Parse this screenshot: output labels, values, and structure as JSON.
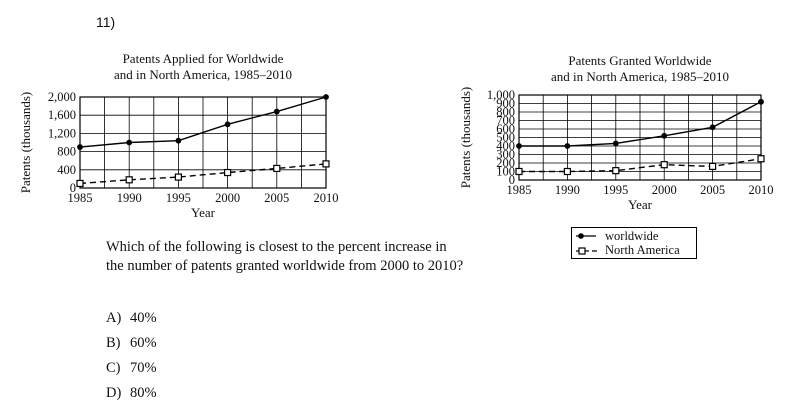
{
  "question_number": "11)",
  "question_text": "Which of the following is closest to the percent increase in the number of patents granted worldwide from 2000 to 2010?",
  "choices": [
    {
      "label": "A)",
      "text": "40%"
    },
    {
      "label": "B)",
      "text": "60%"
    },
    {
      "label": "C)",
      "text": "70%"
    },
    {
      "label": "D)",
      "text": "80%"
    }
  ],
  "legend": {
    "items": [
      {
        "name": "worldwide",
        "marker": "filled-circle",
        "line": "solid"
      },
      {
        "name": "North America",
        "marker": "open-square",
        "line": "dashed"
      }
    ]
  },
  "chart_data": [
    {
      "type": "line",
      "title": "Patents Applied for Worldwide and in North America, 1985–2010",
      "title_lines": [
        "Patents Applied for Worldwide",
        "and in North America, 1985–2010"
      ],
      "xlabel": "Year",
      "ylabel": "Patents (thousands)",
      "x": [
        1985,
        1990,
        1995,
        2000,
        2005,
        2010
      ],
      "xlim": [
        1985,
        2010
      ],
      "ylim": [
        0,
        2000
      ],
      "yticks": [
        0,
        400,
        800,
        1200,
        1600,
        2000
      ],
      "ytick_labels": [
        "0",
        "400",
        "800",
        "1,200",
        "1,600",
        "2,000"
      ],
      "grid": true,
      "series": [
        {
          "name": "worldwide",
          "values": [
            900,
            1000,
            1040,
            1400,
            1680,
            2000
          ],
          "style": "solid",
          "marker": "filled-circle"
        },
        {
          "name": "North America",
          "values": [
            100,
            180,
            240,
            340,
            430,
            530
          ],
          "style": "dashed",
          "marker": "open-square"
        }
      ]
    },
    {
      "type": "line",
      "title": "Patents Granted Worldwide and in North America, 1985–2010",
      "title_lines": [
        "Patents Granted Worldwide",
        "and in North America, 1985–2010"
      ],
      "xlabel": "Year",
      "ylabel": "Patents (thousands)",
      "x": [
        1985,
        1990,
        1995,
        2000,
        2005,
        2010
      ],
      "xlim": [
        1985,
        2010
      ],
      "ylim": [
        0,
        1000
      ],
      "yticks": [
        0,
        100,
        200,
        300,
        400,
        500,
        600,
        700,
        800,
        900,
        1000
      ],
      "ytick_labels": [
        "0",
        "100",
        "200",
        "300",
        "400",
        "500",
        "600",
        "700",
        "800",
        "900",
        "1,000"
      ],
      "grid": true,
      "series": [
        {
          "name": "worldwide",
          "values": [
            400,
            400,
            430,
            520,
            620,
            920
          ],
          "style": "solid",
          "marker": "filled-circle"
        },
        {
          "name": "North America",
          "values": [
            100,
            100,
            110,
            180,
            160,
            250
          ],
          "style": "dashed",
          "marker": "open-square"
        }
      ]
    }
  ]
}
